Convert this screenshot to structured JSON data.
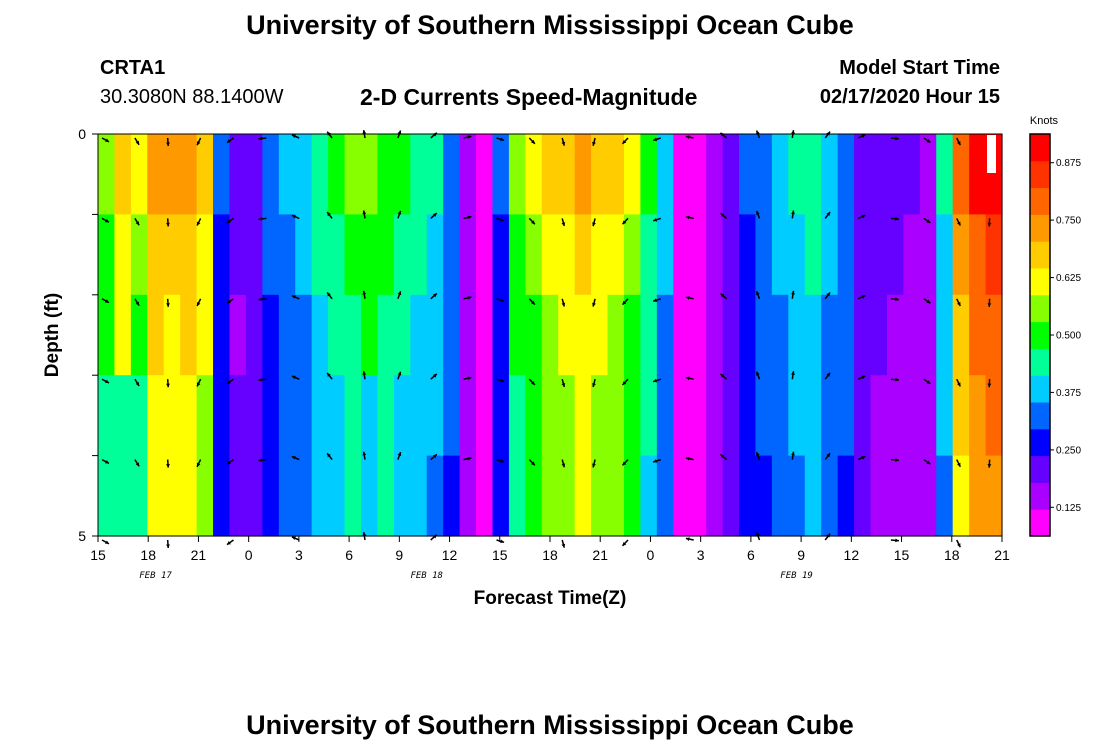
{
  "page": {
    "title_top": "University of Southern Mississippi Ocean Cube",
    "title_bottom": "University of Southern Mississippi Ocean Cube",
    "station": "CRTA1",
    "coords": "30.3080N 88.1400W",
    "plot_title": "2-D Currents Speed-Magnitude",
    "model_start_label": "Model Start Time",
    "model_start_value": "02/17/2020 Hour 15"
  },
  "chart_data": {
    "type": "heatmap",
    "title": "2-D Currents Speed-Magnitude",
    "xlabel": "Forecast Time(Z)",
    "ylabel": "Depth (ft)",
    "ylim": [
      0,
      5
    ],
    "y_tick_labels": [
      "0",
      "5"
    ],
    "x_tick_labels": [
      "15",
      "18",
      "21",
      "0",
      "3",
      "6",
      "9",
      "12",
      "15",
      "18",
      "21",
      "0",
      "3",
      "6",
      "9",
      "12",
      "15",
      "18",
      "21"
    ],
    "date_labels": [
      {
        "text": "FEB 17",
        "hour_index": 3.5
      },
      {
        "text": "FEB 18",
        "hour_index": 20
      },
      {
        "text": "FEB 19",
        "hour_index": 42.5
      }
    ],
    "hours": 55,
    "depth_bins": 5,
    "colorbar": {
      "label": "Knots",
      "min": 0.0625,
      "max": 0.9375,
      "ticks": [
        "0.125",
        "0.250",
        "0.375",
        "0.500",
        "0.625",
        "0.750",
        "0.875"
      ],
      "colors": [
        "#ff00ff",
        "#aa00ff",
        "#6600ff",
        "#0000ff",
        "#0066ff",
        "#00ccff",
        "#00ff99",
        "#00ff00",
        "#88ff00",
        "#ffff00",
        "#ffcc00",
        "#ff9900",
        "#ff6600",
        "#ff3300",
        "#ff0000"
      ]
    },
    "speed_profile_top": [
      0.55,
      0.7,
      0.6,
      0.75,
      0.72,
      0.75,
      0.68,
      0.3,
      0.2,
      0.22,
      0.33,
      0.38,
      0.4,
      0.45,
      0.48,
      0.53,
      0.55,
      0.52,
      0.48,
      0.45,
      0.42,
      0.35,
      0.15,
      0.12,
      0.3,
      0.55,
      0.6,
      0.65,
      0.68,
      0.72,
      0.68,
      0.65,
      0.6,
      0.5,
      0.4,
      0.05,
      0.06,
      0.15,
      0.23,
      0.3,
      0.35,
      0.4,
      0.42,
      0.45,
      0.4,
      0.35,
      0.22,
      0.21,
      0.2,
      0.18,
      0.15,
      0.42,
      0.78,
      0.88,
      0.92
    ],
    "depth_factors": [
      1.0,
      0.92,
      0.88,
      0.85,
      0.82
    ],
    "column_overrides": {
      "1": 0.43,
      "2": 0.47,
      "8": 0.22,
      "16": 0.4
    },
    "direction_cycle_hours": 24.8,
    "legend_location": "right"
  }
}
